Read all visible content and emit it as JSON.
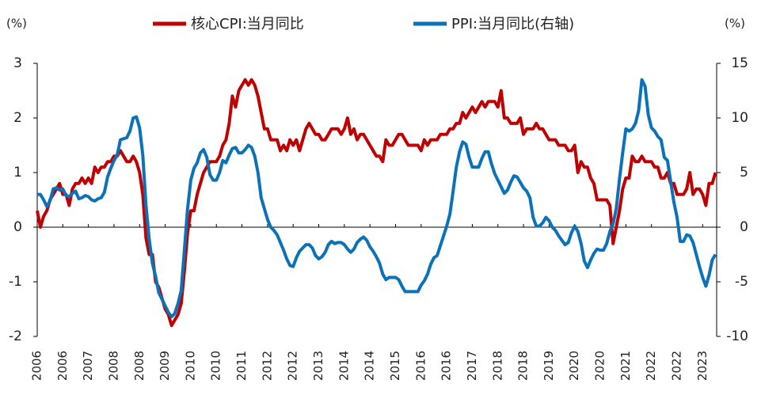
{
  "chart_data": {
    "type": "line",
    "y_unit": "(%)",
    "y2_unit": "(%)",
    "legend": "top",
    "ylim": [
      -2,
      3
    ],
    "yticks": [
      -2,
      -1,
      0,
      1,
      2,
      3
    ],
    "y2lim": [
      -10,
      15
    ],
    "y2ticks": [
      -10,
      -5,
      0,
      5,
      10,
      15
    ],
    "categories": [
      "2006",
      null,
      null,
      null,
      null,
      null,
      null,
      null,
      "2006",
      null,
      null,
      null,
      null,
      null,
      null,
      null,
      "2007",
      null,
      null,
      null,
      null,
      null,
      null,
      null,
      "2008",
      null,
      null,
      null,
      null,
      null,
      null,
      null,
      "2008",
      null,
      null,
      null,
      null,
      null,
      null,
      null,
      "2009",
      null,
      null,
      null,
      null,
      null,
      null,
      null,
      "2010",
      null,
      null,
      null,
      null,
      null,
      null,
      null,
      "2010",
      null,
      null,
      null,
      null,
      null,
      null,
      null,
      "2011",
      null,
      null,
      null,
      null,
      null,
      null,
      null,
      "2012",
      null,
      null,
      null,
      null,
      null,
      null,
      null,
      "2012",
      null,
      null,
      null,
      null,
      null,
      null,
      null,
      "2013",
      null,
      null,
      null,
      null,
      null,
      null,
      null,
      "2014",
      null,
      null,
      null,
      null,
      null,
      null,
      null,
      "2014",
      null,
      null,
      null,
      null,
      null,
      null,
      null,
      "2015",
      null,
      null,
      null,
      null,
      null,
      null,
      null,
      "2016",
      null,
      null,
      null,
      null,
      null,
      null,
      null,
      "2016",
      null,
      null,
      null,
      null,
      null,
      null,
      null,
      "2017",
      null,
      null,
      null,
      null,
      null,
      null,
      null,
      "2018",
      null,
      null,
      null,
      null,
      null,
      null,
      null,
      "2018",
      null,
      null,
      null,
      null,
      null,
      null,
      null,
      "2019",
      null,
      null,
      null,
      null,
      null,
      null,
      null,
      "2020",
      null,
      null,
      null,
      null,
      null,
      null,
      null,
      "2020",
      null,
      null,
      null,
      null,
      null,
      null,
      null,
      "2021",
      null,
      null,
      null,
      null,
      null,
      null,
      null,
      "2022",
      null,
      null,
      null,
      null,
      null,
      null,
      null,
      "2022",
      null,
      null,
      null,
      null,
      null,
      null,
      null,
      "2023",
      null,
      null,
      null,
      null
    ],
    "series": [
      {
        "name": "核心CPI:当月同比",
        "color": "#c00000",
        "axis": "y",
        "values": [
          0.3,
          0.0,
          0.2,
          0.3,
          0.5,
          0.6,
          0.7,
          0.8,
          0.6,
          0.6,
          0.4,
          0.7,
          0.8,
          0.8,
          0.9,
          0.8,
          0.9,
          0.8,
          1.1,
          1.0,
          1.1,
          1.1,
          1.2,
          1.2,
          1.3,
          1.3,
          1.4,
          1.3,
          1.2,
          1.2,
          1.3,
          1.2,
          1.0,
          0.6,
          -0.2,
          -0.5,
          -0.5,
          -1.0,
          -1.1,
          -1.3,
          -1.5,
          -1.6,
          -1.8,
          -1.7,
          -1.6,
          -1.4,
          -0.8,
          -0.1,
          0.3,
          0.3,
          0.6,
          0.8,
          1.0,
          1.1,
          1.2,
          1.2,
          1.2,
          1.3,
          1.5,
          1.6,
          1.9,
          2.4,
          2.2,
          2.5,
          2.6,
          2.7,
          2.6,
          2.7,
          2.6,
          2.4,
          2.1,
          1.8,
          1.8,
          1.6,
          1.6,
          1.6,
          1.4,
          1.5,
          1.4,
          1.6,
          1.5,
          1.6,
          1.4,
          1.6,
          1.8,
          1.9,
          1.8,
          1.7,
          1.7,
          1.6,
          1.6,
          1.7,
          1.8,
          1.8,
          1.8,
          1.7,
          1.8,
          2.0,
          1.7,
          1.8,
          1.6,
          1.7,
          1.7,
          1.6,
          1.5,
          1.4,
          1.3,
          1.3,
          1.2,
          1.6,
          1.5,
          1.5,
          1.6,
          1.7,
          1.7,
          1.6,
          1.5,
          1.5,
          1.5,
          1.5,
          1.4,
          1.6,
          1.5,
          1.6,
          1.6,
          1.6,
          1.7,
          1.7,
          1.7,
          1.8,
          1.8,
          1.9,
          1.9,
          2.1,
          2.0,
          2.1,
          2.2,
          2.1,
          2.2,
          2.3,
          2.2,
          2.3,
          2.3,
          2.3,
          2.2,
          2.5,
          2.0,
          2.0,
          1.9,
          1.9,
          1.9,
          2.0,
          1.7,
          1.8,
          1.8,
          1.8,
          1.9,
          1.8,
          1.8,
          1.7,
          1.6,
          1.6,
          1.6,
          1.5,
          1.5,
          1.5,
          1.4,
          1.4,
          1.5,
          1.0,
          1.2,
          1.1,
          1.1,
          0.9,
          0.8,
          0.5,
          0.5,
          0.5,
          0.5,
          0.4,
          -0.3,
          0.0,
          0.3,
          0.7,
          0.9,
          0.9,
          1.3,
          1.2,
          1.2,
          1.3,
          1.2,
          1.2,
          1.2,
          1.1,
          1.1,
          0.9,
          0.9,
          1.0,
          0.8,
          0.8,
          0.6,
          0.6,
          0.6,
          0.7,
          1.0,
          0.6,
          0.7,
          0.7,
          0.6,
          0.4,
          0.8,
          0.8,
          1.0
        ]
      },
      {
        "name": "PPI:当月同比(右轴)",
        "color": "#0b72b9",
        "axis": "y2",
        "values": [
          3.0,
          3.0,
          2.5,
          1.9,
          2.4,
          3.5,
          3.6,
          3.4,
          3.5,
          2.9,
          2.8,
          3.1,
          3.3,
          2.6,
          2.7,
          2.9,
          2.8,
          2.5,
          2.4,
          2.6,
          2.7,
          3.2,
          4.6,
          5.4,
          6.1,
          6.6,
          8.0,
          8.1,
          8.2,
          8.8,
          10.0,
          10.1,
          9.1,
          6.6,
          2.0,
          -1.1,
          -3.3,
          -4.5,
          -6.0,
          -6.6,
          -7.2,
          -7.8,
          -8.2,
          -7.9,
          -7.0,
          -5.8,
          -2.1,
          1.7,
          4.3,
          5.4,
          5.9,
          6.8,
          7.1,
          6.4,
          4.8,
          4.3,
          4.3,
          5.0,
          6.1,
          5.9,
          6.6,
          7.2,
          7.3,
          6.8,
          6.8,
          7.1,
          7.5,
          7.3,
          6.5,
          5.0,
          2.7,
          1.7,
          0.7,
          0.0,
          -0.3,
          -0.7,
          -1.4,
          -2.1,
          -2.9,
          -3.5,
          -3.6,
          -2.8,
          -2.2,
          -1.9,
          -1.6,
          -1.6,
          -1.9,
          -2.6,
          -2.9,
          -2.7,
          -2.3,
          -1.6,
          -1.3,
          -1.5,
          -1.4,
          -1.4,
          -1.6,
          -2.0,
          -2.3,
          -2.0,
          -1.4,
          -1.1,
          -0.9,
          -1.2,
          -1.8,
          -2.2,
          -2.7,
          -3.3,
          -4.3,
          -4.8,
          -4.6,
          -4.6,
          -4.6,
          -4.8,
          -5.4,
          -5.9,
          -5.9,
          -5.9,
          -5.9,
          -5.9,
          -5.3,
          -4.9,
          -4.3,
          -3.4,
          -2.8,
          -2.6,
          -1.7,
          -0.8,
          0.1,
          1.2,
          3.3,
          5.5,
          6.9,
          7.8,
          7.6,
          6.4,
          5.5,
          5.5,
          5.5,
          6.3,
          6.9,
          6.9,
          5.8,
          4.9,
          4.3,
          3.7,
          3.1,
          3.4,
          4.1,
          4.7,
          4.6,
          4.1,
          3.6,
          3.3,
          2.7,
          0.9,
          0.1,
          0.1,
          0.4,
          0.9,
          0.6,
          0.0,
          -0.3,
          -0.8,
          -1.2,
          -1.6,
          -1.4,
          -0.5,
          0.1,
          -0.4,
          -1.5,
          -3.1,
          -3.7,
          -3.0,
          -2.4,
          -2.0,
          -2.1,
          -2.1,
          -1.5,
          -0.4,
          0.3,
          1.7,
          4.4,
          6.8,
          9.0,
          8.8,
          9.0,
          9.5,
          10.7,
          13.5,
          12.9,
          10.3,
          9.1,
          8.8,
          8.3,
          8.0,
          6.4,
          6.1,
          4.2,
          2.3,
          0.9,
          -1.3,
          -1.3,
          -0.7,
          -0.8,
          -1.4,
          -2.5,
          -3.6,
          -4.6,
          -5.4,
          -4.4,
          -3.0,
          -2.5
        ]
      }
    ]
  }
}
